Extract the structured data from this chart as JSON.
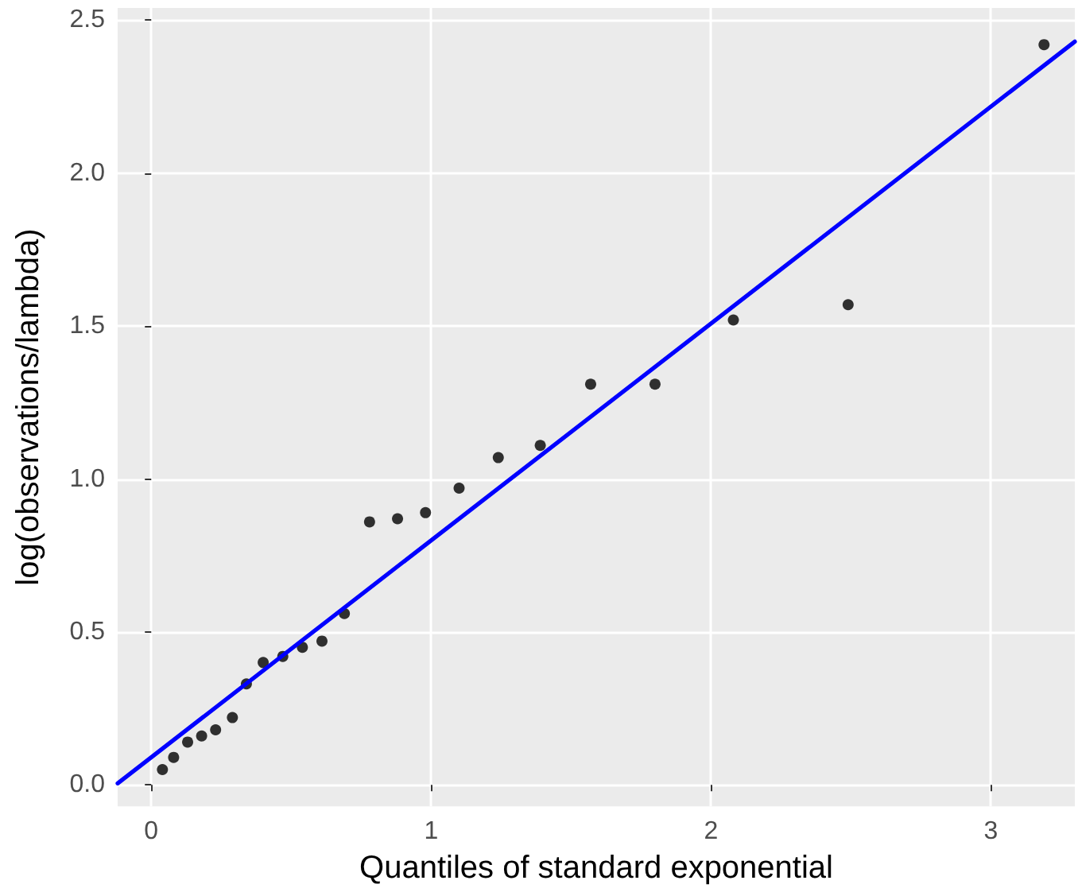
{
  "chart_data": {
    "type": "scatter",
    "xlabel": "Quantiles of standard exponential",
    "ylabel": "log(observations/lambda)",
    "xlim": [
      -0.12,
      3.3
    ],
    "ylim": [
      -0.07,
      2.54
    ],
    "xticks": [
      0,
      1,
      2,
      3
    ],
    "yticks": [
      {
        "value": 0,
        "label": "0.0"
      },
      {
        "value": 0.5,
        "label": "0.5"
      },
      {
        "value": 1,
        "label": "1.0"
      },
      {
        "value": 1.5,
        "label": "1.5"
      },
      {
        "value": 2,
        "label": "2.0"
      },
      {
        "value": 2.5,
        "label": "2.5"
      }
    ],
    "grid": true,
    "series": [
      {
        "marker": "circle",
        "color": "#000000",
        "x": [
          0.04,
          0.08,
          0.13,
          0.18,
          0.23,
          0.29,
          0.34,
          0.4,
          0.47,
          0.54,
          0.61,
          0.69,
          0.78,
          0.88,
          0.98,
          1.1,
          1.24,
          1.39,
          1.57,
          1.8,
          2.08,
          2.49,
          3.19
        ],
        "values": [
          0.05,
          0.09,
          0.14,
          0.16,
          0.18,
          0.22,
          0.33,
          0.4,
          0.42,
          0.45,
          0.47,
          0.56,
          0.86,
          0.87,
          0.89,
          0.97,
          1.07,
          1.11,
          1.31,
          1.31,
          1.52,
          1.57,
          2.42
        ]
      },
      {
        "type": "line",
        "color": "#0000ff",
        "line_style": "solid",
        "x": [
          -0.12,
          3.3
        ],
        "values": [
          0.005,
          2.43
        ]
      }
    ]
  }
}
